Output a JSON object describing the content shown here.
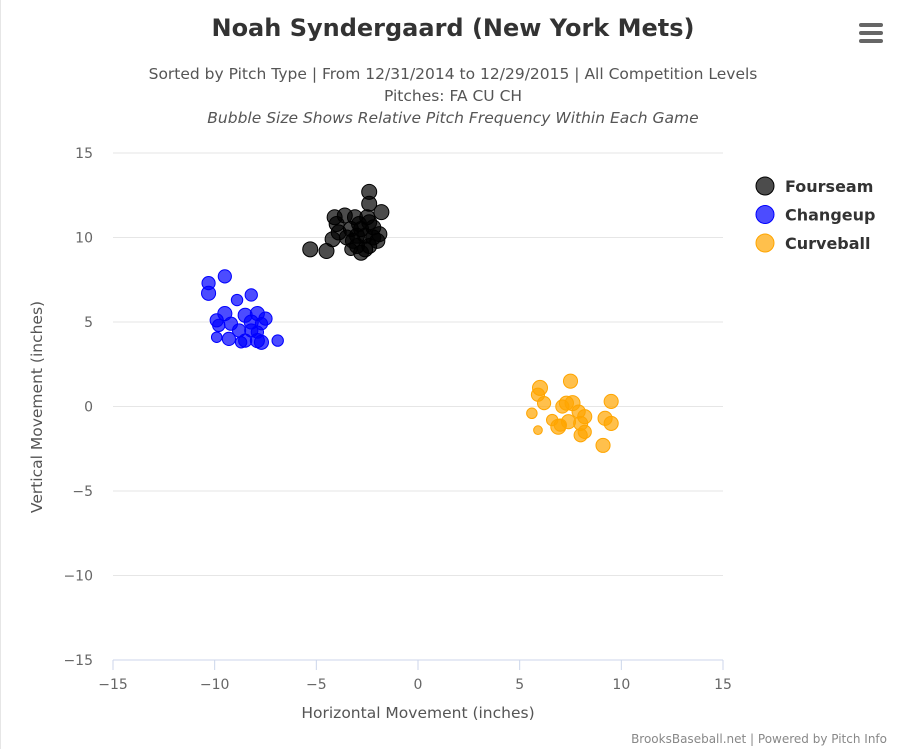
{
  "chart_data": {
    "type": "scatter",
    "title": "Noah Syndergaard (New York Mets)",
    "subtitle_lines": [
      "Sorted by Pitch Type | From 12/31/2014 to 12/29/2015 | All Competition Levels",
      "Pitches: FA CU CH",
      "Bubble Size Shows Relative Pitch Frequency Within Each Game"
    ],
    "xlabel": "Horizontal Movement (inches)",
    "ylabel": "Vertical Movement (inches)",
    "xlim": [
      -15,
      15
    ],
    "ylim": [
      -15,
      15
    ],
    "x_ticks": [
      "−15",
      "−10",
      "−5",
      "0",
      "5",
      "10",
      "15"
    ],
    "y_ticks": [
      "15",
      "10",
      "5",
      "0",
      "−5",
      "−10",
      "−15"
    ],
    "grid": "horizontal",
    "legend": "top-right",
    "series": [
      {
        "name": "Fourseam",
        "color": "#000000",
        "points": [
          [
            -2.4,
            12.7
          ],
          [
            -2.4,
            12.0
          ],
          [
            -1.8,
            11.5
          ],
          [
            -4.1,
            11.2
          ],
          [
            -3.6,
            11.3
          ],
          [
            -3.1,
            11.2
          ],
          [
            -2.5,
            11.2
          ],
          [
            -4.0,
            10.8
          ],
          [
            -2.9,
            10.8
          ],
          [
            -2.4,
            10.9
          ],
          [
            -3.9,
            10.3
          ],
          [
            -3.3,
            10.5
          ],
          [
            -2.8,
            10.5
          ],
          [
            -2.2,
            10.6
          ],
          [
            -1.9,
            10.2
          ],
          [
            -3.5,
            10.0
          ],
          [
            -3.0,
            10.1
          ],
          [
            -2.6,
            10.1
          ],
          [
            -2.2,
            10.0
          ],
          [
            -4.2,
            9.9
          ],
          [
            -3.2,
            9.8
          ],
          [
            -2.0,
            9.8
          ],
          [
            -2.4,
            9.5
          ],
          [
            -3.0,
            9.5
          ],
          [
            -3.3,
            9.3
          ],
          [
            -2.6,
            9.3
          ],
          [
            -2.8,
            9.1
          ],
          [
            -5.3,
            9.3
          ],
          [
            -4.5,
            9.2
          ]
        ],
        "sizes": [
          1,
          1,
          1,
          1,
          1,
          1,
          1,
          1,
          1,
          1,
          1,
          1,
          1,
          1,
          1,
          1,
          1,
          1,
          1,
          1,
          1,
          1,
          1,
          1,
          0.7,
          1,
          1,
          1,
          1
        ]
      },
      {
        "name": "Changeup",
        "color": "#0000ff",
        "points": [
          [
            -9.5,
            7.7
          ],
          [
            -10.3,
            7.3
          ],
          [
            -10.3,
            6.7
          ],
          [
            -8.2,
            6.6
          ],
          [
            -8.9,
            6.3
          ],
          [
            -9.5,
            5.5
          ],
          [
            -8.5,
            5.4
          ],
          [
            -7.9,
            5.5
          ],
          [
            -7.5,
            5.2
          ],
          [
            -9.9,
            5.1
          ],
          [
            -9.2,
            4.9
          ],
          [
            -8.2,
            5.0
          ],
          [
            -7.7,
            4.9
          ],
          [
            -9.8,
            4.8
          ],
          [
            -8.8,
            4.5
          ],
          [
            -8.2,
            4.5
          ],
          [
            -9.3,
            4.0
          ],
          [
            -9.9,
            4.1
          ],
          [
            -8.5,
            3.9
          ],
          [
            -7.9,
            3.9
          ],
          [
            -7.7,
            3.8
          ],
          [
            -8.7,
            3.8
          ],
          [
            -6.9,
            3.9
          ],
          [
            -7.9,
            4.4
          ]
        ],
        "sizes": [
          0.8,
          0.8,
          0.9,
          0.7,
          0.6,
          0.9,
          0.9,
          0.9,
          0.8,
          0.8,
          0.8,
          0.9,
          0.7,
          0.7,
          0.8,
          0.8,
          0.8,
          0.5,
          0.8,
          0.9,
          0.9,
          0.6,
          0.6,
          0.7
        ]
      },
      {
        "name": "Curveball",
        "color": "#ffa500",
        "points": [
          [
            7.5,
            1.5
          ],
          [
            6.0,
            1.1
          ],
          [
            5.9,
            0.7
          ],
          [
            6.2,
            0.2
          ],
          [
            9.5,
            0.3
          ],
          [
            7.3,
            0.2
          ],
          [
            7.6,
            0.2
          ],
          [
            7.1,
            0.0
          ],
          [
            7.9,
            -0.3
          ],
          [
            5.6,
            -0.4
          ],
          [
            8.2,
            -0.6
          ],
          [
            9.2,
            -0.7
          ],
          [
            7.4,
            -0.9
          ],
          [
            9.5,
            -1.0
          ],
          [
            8.0,
            -1.0
          ],
          [
            6.9,
            -1.2
          ],
          [
            8.2,
            -1.5
          ],
          [
            8.0,
            -1.7
          ],
          [
            5.9,
            -1.4
          ],
          [
            9.1,
            -2.3
          ],
          [
            6.6,
            -0.8
          ],
          [
            7.0,
            -1.1
          ]
        ],
        "sizes": [
          0.9,
          1,
          0.8,
          0.8,
          0.9,
          0.9,
          1,
          0.8,
          0.8,
          0.5,
          0.9,
          0.9,
          0.9,
          0.9,
          0.9,
          1,
          0.8,
          0.8,
          0.3,
          0.9,
          0.6,
          0.7
        ]
      }
    ]
  },
  "credits": "BrooksBaseball.net | Powered by Pitch Info"
}
